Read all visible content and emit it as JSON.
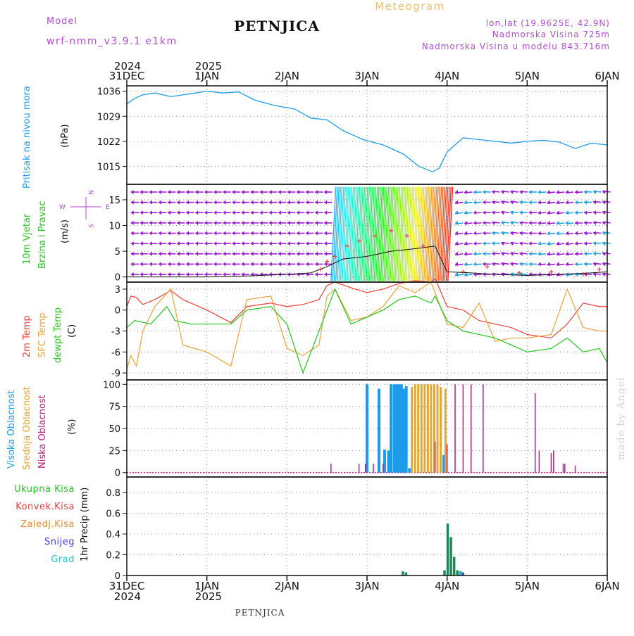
{
  "header": {
    "model_label": "Model",
    "model_name": "wrf-nmm_v3.9.1  e1km",
    "station": "PETNJICA",
    "product": "Meteogram",
    "lonlat": "lon,lat (19.9625E, 42.9N)",
    "altitude": "Nadmorska Visina 725m",
    "model_altitude": "Nadmorska Visina u modelu 843.716m"
  },
  "footer": {
    "station": "PETNJICA",
    "credit": "made by Angel"
  },
  "time_axis": {
    "top_years": [
      "2024",
      "2025"
    ],
    "bottom_years": [
      "2024",
      "2025"
    ],
    "ticks": [
      "31DEC",
      "1JAN",
      "2JAN",
      "3JAN",
      "4JAN",
      "5JAN",
      "6JAN"
    ]
  },
  "colors": {
    "pressure": "#1e9be8",
    "temp2m": "#e8413a",
    "sfc_temp": "#e8a33a",
    "dewpoint": "#22c41c",
    "high_cloud": "#1e9be8",
    "mid_cloud": "#e0a830",
    "low_cloud": "#c0187a",
    "precip_total": "#22c41c",
    "precip_conv": "#e83a3a",
    "precip_frz": "#e88a30",
    "snow": "#4040e0",
    "graupel": "#20c0c0",
    "wind_arrow": "#9a1ad0"
  },
  "chart_data": [
    {
      "type": "line",
      "ylabel_1": "Pritisak na nivou mora",
      "ylabel_2": "(hPa)",
      "y_ticks": [
        "1036",
        "1029",
        "1022",
        "1015"
      ],
      "ylim": [
        1010,
        1037.5
      ],
      "x_days": [
        0,
        0.1,
        0.2,
        0.35,
        0.55,
        0.8,
        1.0,
        1.2,
        1.4,
        1.6,
        1.85,
        2.1,
        2.3,
        2.5,
        2.7,
        2.95,
        3.2,
        3.45,
        3.65,
        3.82,
        3.9,
        4.0,
        4.2,
        4.4,
        4.6,
        4.8,
        5.0,
        5.2,
        5.4,
        5.6,
        5.8,
        6.0
      ],
      "series": [
        {
          "values": [
            1032.5,
            1034.0,
            1035.0,
            1035.5,
            1034.5,
            1035.3,
            1036.0,
            1035.5,
            1035.8,
            1033.5,
            1032.0,
            1031.0,
            1028.5,
            1028.0,
            1025.0,
            1022.5,
            1021.0,
            1018.5,
            1015.0,
            1013.5,
            1014.5,
            1019.0,
            1023.0,
            1022.5,
            1022.0,
            1021.5,
            1022.0,
            1022.3,
            1021.8,
            1020.0,
            1021.5,
            1021.0
          ]
        }
      ]
    },
    {
      "type": "scatter",
      "ylabel_1": "10m Vjetar",
      "ylabel_2": "Brzina i Pravac",
      "ylabel_3": "(m/s)",
      "compass": {
        "n": "N",
        "w": "W",
        "e": "E",
        "s": "S"
      },
      "y_ticks": [
        "15",
        "10",
        "5",
        "0"
      ],
      "ylim": [
        -1,
        18
      ],
      "x_days": [
        0,
        0.5,
        1.0,
        1.5,
        2.0,
        2.3,
        2.5,
        2.7,
        3.0,
        3.3,
        3.6,
        3.85,
        4.0,
        4.3,
        4.6,
        5.0,
        5.4,
        5.8,
        6.0
      ],
      "series": [
        {
          "values": [
            0,
            0,
            0,
            0.2,
            0.5,
            0.8,
            2.0,
            3.5,
            4.0,
            5.0,
            5.5,
            6.0,
            1.0,
            0.8,
            0.5,
            0.3,
            0.5,
            0.8,
            1.0
          ]
        }
      ]
    },
    {
      "type": "line",
      "ylabel_1": "2m Temp",
      "ylabel_2": "SFC Temp",
      "ylabel_3": "dewpt Temp",
      "ylabel_4": "(C)",
      "y_ticks": [
        "3",
        "0",
        "-3",
        "-6",
        "-9"
      ],
      "ylim": [
        -10,
        4
      ],
      "series": [
        {
          "name": "2m Temp",
          "x": [
            0,
            0.05,
            0.12,
            0.2,
            0.35,
            0.55,
            0.7,
            1.0,
            1.3,
            1.5,
            1.8,
            2.0,
            2.2,
            2.4,
            2.5,
            2.6,
            2.8,
            3.0,
            3.2,
            3.4,
            3.6,
            3.8,
            3.85,
            4.0,
            4.2,
            4.4,
            4.6,
            4.8,
            5.0,
            5.3,
            5.5,
            5.7,
            5.9,
            6.0
          ],
          "values": [
            0.5,
            2.0,
            1.8,
            0.8,
            1.5,
            2.8,
            1.5,
            0.0,
            -1.8,
            0.5,
            1.0,
            0.5,
            0.8,
            1.5,
            3.5,
            4.0,
            3.2,
            2.5,
            3.0,
            3.8,
            4.2,
            4.0,
            4.5,
            0.5,
            0.0,
            -1.5,
            -2.0,
            -2.5,
            -3.5,
            -4.0,
            -2.0,
            1.0,
            0.5,
            0.5
          ]
        },
        {
          "name": "SFC Temp",
          "x": [
            0,
            0.05,
            0.12,
            0.2,
            0.35,
            0.55,
            0.7,
            1.0,
            1.3,
            1.5,
            1.8,
            2.0,
            2.2,
            2.4,
            2.5,
            2.6,
            2.8,
            3.0,
            3.2,
            3.4,
            3.6,
            3.8,
            4.0,
            4.2,
            4.4,
            4.6,
            4.8,
            5.0,
            5.3,
            5.5,
            5.7,
            5.9,
            6.0
          ],
          "values": [
            -8.5,
            -6.5,
            -8.0,
            -3.0,
            0.5,
            3.0,
            -5.0,
            -6.0,
            -8.0,
            1.5,
            2.0,
            -5.5,
            -6.5,
            -5.0,
            2.0,
            3.0,
            -1.5,
            -1.0,
            0.5,
            3.5,
            2.5,
            4.0,
            -2.0,
            -2.5,
            1.0,
            -4.5,
            -4.0,
            -4.0,
            -3.5,
            3.0,
            -2.5,
            -3.0,
            -3.0
          ]
        },
        {
          "name": "dewpt Temp",
          "x": [
            0,
            0.1,
            0.3,
            0.5,
            0.6,
            0.8,
            1.0,
            1.3,
            1.5,
            1.8,
            2.0,
            2.2,
            2.3,
            2.5,
            2.6,
            2.8,
            3.0,
            3.2,
            3.4,
            3.6,
            3.8,
            3.85,
            4.0,
            4.2,
            4.4,
            4.6,
            4.8,
            5.0,
            5.3,
            5.5,
            5.7,
            5.9,
            6.0
          ],
          "values": [
            -2.5,
            -1.5,
            -2.0,
            0.5,
            -1.5,
            -2.0,
            -2.0,
            -2.0,
            0.0,
            0.5,
            -2.0,
            -9.0,
            -6.0,
            0.0,
            3.0,
            -2.0,
            -1.0,
            0.0,
            1.5,
            2.0,
            1.0,
            2.0,
            -1.5,
            -3.0,
            -3.5,
            -4.0,
            -5.0,
            -6.0,
            -5.5,
            -4.0,
            -6.0,
            -5.5,
            -7.5
          ]
        }
      ]
    },
    {
      "type": "bar",
      "ylabel_1": "Visoka Oblacnost",
      "ylabel_2": "Srednja Oblacnost",
      "ylabel_3": "Niska Oblacnost",
      "ylabel_4": "(%)",
      "y_ticks": [
        "100",
        "75",
        "50",
        "25",
        "0"
      ],
      "ylim": [
        -5,
        105
      ],
      "series": [
        {
          "name": "Visoka Oblacnost",
          "x": [
            3.0,
            3.15,
            3.22,
            3.27,
            3.3,
            3.34,
            3.37,
            3.4,
            3.43,
            3.46,
            3.49,
            3.53,
            3.96
          ],
          "values": [
            100,
            95,
            26,
            25,
            100,
            100,
            100,
            100,
            100,
            95,
            98,
            5,
            20
          ]
        },
        {
          "name": "Srednja Oblacnost",
          "x": [
            3.56,
            3.6,
            3.64,
            3.68,
            3.72,
            3.76,
            3.8,
            3.84,
            3.88,
            3.92,
            3.98
          ],
          "values": [
            97,
            100,
            100,
            100,
            100,
            100,
            100,
            100,
            100,
            97,
            95
          ]
        },
        {
          "name": "Niska Oblacnost",
          "x": [
            2.55,
            2.9,
            2.98,
            3.08,
            3.2,
            3.85,
            4.0,
            4.1,
            4.2,
            4.3,
            4.45,
            5.1,
            5.15,
            5.3,
            5.33,
            5.45,
            5.47,
            5.6
          ],
          "values": [
            10,
            10,
            10,
            10,
            10,
            35,
            32,
            100,
            100,
            100,
            100,
            90,
            25,
            22,
            25,
            10,
            10,
            8
          ]
        }
      ]
    },
    {
      "type": "bar",
      "ylabel_1": "Ukupna Kisa",
      "ylabel_2": "Konvek.Kisa",
      "ylabel_3": "Zaledj.Kisa",
      "ylabel_4": "Snijeg",
      "ylabel_5": "Grad",
      "ylabel_6": "1hr Precip (mm)",
      "y_ticks": [
        "0.8",
        "0.6",
        "0.4",
        "0.2",
        "0"
      ],
      "ylim": [
        0,
        0.95
      ],
      "series": [
        {
          "name": "Ukupna Kisa",
          "x": [
            3.45,
            3.49,
            3.97,
            4.01,
            4.05,
            4.09,
            4.13,
            4.17
          ],
          "values": [
            0.04,
            0.03,
            0.05,
            0.5,
            0.37,
            0.18,
            0.05,
            0.04
          ]
        }
      ]
    }
  ]
}
